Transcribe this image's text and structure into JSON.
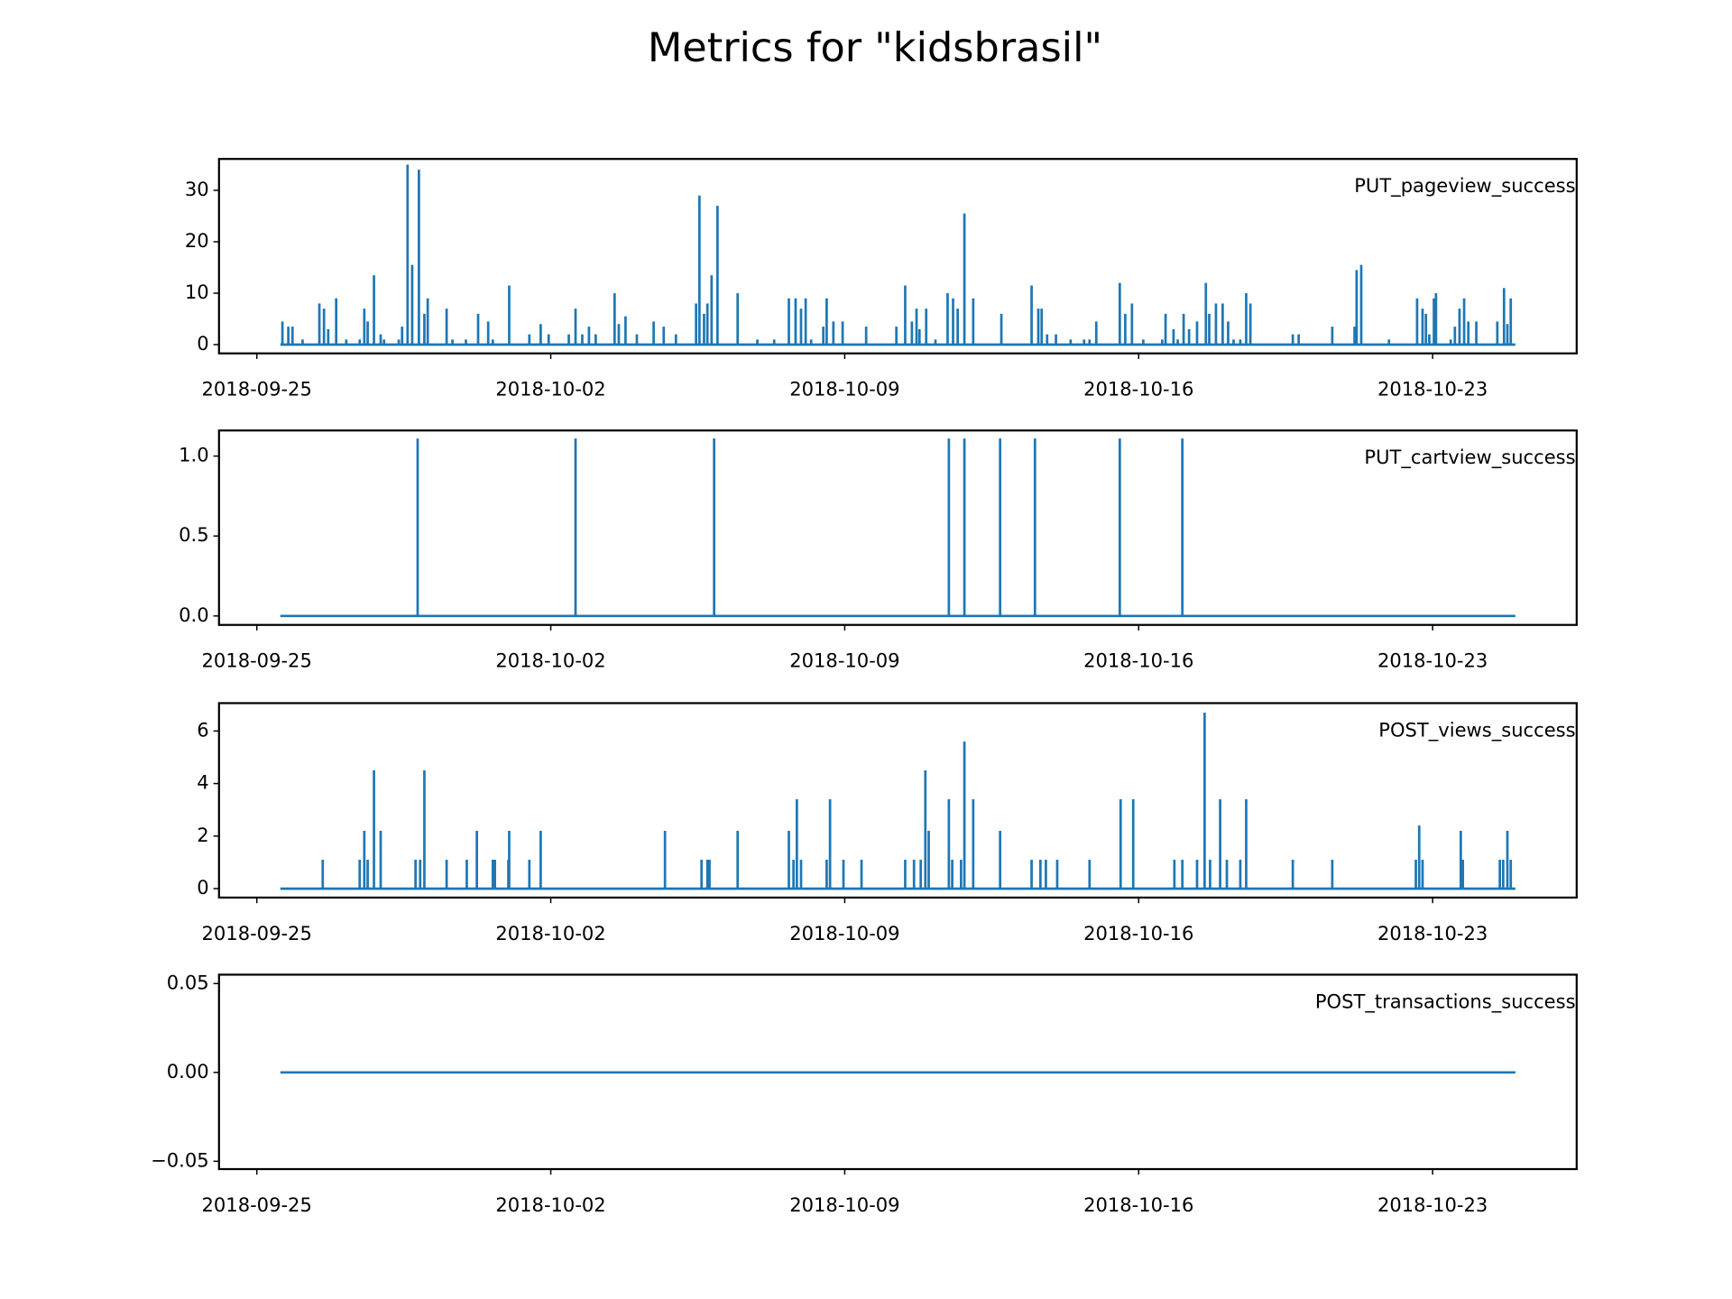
{
  "title": "Metrics for \"kidsbrasil\"",
  "chart_data": [
    {
      "type": "spike",
      "xlim": [
        -0.9,
        31.43
      ],
      "ylim": [
        -1.7,
        36.1
      ],
      "yticks": [
        0,
        10,
        20,
        30
      ],
      "xticks": [
        {
          "value": 0,
          "label": "2018-09-25"
        },
        {
          "value": 7,
          "label": "2018-10-02"
        },
        {
          "value": 14,
          "label": "2018-10-09"
        },
        {
          "value": 21,
          "label": "2018-10-16"
        },
        {
          "value": 28,
          "label": "2018-10-23"
        }
      ],
      "x": [
        0.56,
        0.61,
        0.75,
        0.85,
        1.09,
        1.49,
        1.6,
        1.7,
        1.89,
        2.13,
        2.45,
        2.56,
        2.64,
        2.79,
        2.95,
        3.03,
        3.38,
        3.46,
        3.59,
        3.7,
        3.86,
        3.99,
        4.07,
        4.52,
        4.66,
        4.98,
        5.27,
        5.51,
        5.62,
        6.01,
        6.49,
        6.76,
        6.95,
        7.43,
        7.59,
        7.75,
        7.91,
        8.07,
        8.52,
        8.62,
        8.78,
        9.05,
        9.45,
        9.69,
        9.98,
        10.46,
        10.54,
        10.65,
        10.73,
        10.83,
        10.97,
        11.45,
        11.92,
        12.32,
        12.67,
        12.83,
        12.96,
        13.07,
        13.2,
        13.49,
        13.57,
        13.73,
        13.95,
        14.51,
        15.23,
        15.44,
        15.6,
        15.71,
        15.78,
        15.94,
        16.16,
        16.45,
        16.58,
        16.69,
        16.85,
        17.06,
        17.73,
        18.45,
        18.61,
        18.69,
        18.82,
        19.03,
        19.38,
        19.7,
        19.83,
        19.99,
        20.55,
        20.68,
        20.84,
        21.11,
        21.56,
        21.64,
        21.83,
        21.93,
        22.07,
        22.2,
        22.39,
        22.6,
        22.68,
        22.84,
        23.0,
        23.13,
        23.26,
        23.42,
        23.56,
        23.66,
        24.67,
        24.81,
        25.61,
        26.14,
        26.19,
        26.3,
        26.96,
        27.63,
        27.76,
        27.84,
        27.92,
        28.03,
        28.08,
        28.43,
        28.53,
        28.64,
        28.75,
        28.85,
        29.04,
        29.54,
        29.7,
        29.78,
        29.86,
        29.97
      ],
      "series": [
        {
          "name": "PUT_pageview_success",
          "color": "#1f77b4",
          "values": [
            0,
            4.5,
            3.5,
            3.5,
            1,
            8,
            7,
            3,
            9,
            1,
            1,
            7,
            4.5,
            13.5,
            2,
            1,
            1,
            3.5,
            35,
            15.5,
            34,
            6,
            9,
            7,
            1,
            1,
            6,
            4.5,
            1,
            11.5,
            2,
            4,
            2,
            2,
            7,
            2,
            3.5,
            2,
            10,
            4,
            5.5,
            2,
            4.5,
            3.5,
            2,
            8,
            29,
            6,
            8,
            13.5,
            27,
            10,
            1,
            1,
            9,
            9,
            7,
            9,
            1,
            3.5,
            9,
            4.5,
            4.5,
            3.5,
            3.5,
            11.5,
            4.5,
            7,
            3,
            7,
            1,
            10,
            9,
            7,
            25.5,
            9,
            6,
            11.5,
            7,
            7,
            2,
            2,
            1,
            1,
            1,
            4.5,
            12,
            6,
            8,
            1,
            1,
            6,
            3,
            1,
            6,
            3,
            4.5,
            12,
            6,
            8,
            8,
            4.5,
            1,
            1,
            10,
            8,
            2,
            2,
            3.5,
            3.5,
            14.5,
            15.5,
            1,
            9,
            7,
            6,
            2,
            9,
            10,
            1,
            3.5,
            7,
            9,
            4.5,
            4.5,
            4.5,
            11,
            4,
            9,
            0
          ]
        }
      ]
    },
    {
      "type": "spike",
      "xlim": [
        -0.9,
        31.43
      ],
      "ylim": [
        -0.056,
        1.16
      ],
      "yticks": [
        {
          "value": 0,
          "label": "0.0"
        },
        {
          "value": 0.5,
          "label": "0.5"
        },
        {
          "value": 1,
          "label": "1.0"
        }
      ],
      "xticks": [
        {
          "value": 0,
          "label": "2018-09-25"
        },
        {
          "value": 7,
          "label": "2018-10-02"
        },
        {
          "value": 14,
          "label": "2018-10-09"
        },
        {
          "value": 21,
          "label": "2018-10-16"
        },
        {
          "value": 28,
          "label": "2018-10-23"
        }
      ],
      "x": [
        0.56,
        3.83,
        7.59,
        10.89,
        16.48,
        16.85,
        17.7,
        18.53,
        20.55,
        22.04,
        29.97
      ],
      "series": [
        {
          "name": "PUT_cartview_success",
          "color": "#1f77b4",
          "values": [
            0,
            1.11,
            1.11,
            1.11,
            1.11,
            1.11,
            1.11,
            1.11,
            1.11,
            1.11,
            0
          ]
        }
      ]
    },
    {
      "type": "spike",
      "xlim": [
        -0.9,
        31.43
      ],
      "ylim": [
        -0.34,
        7.06
      ],
      "yticks": [
        0,
        2,
        4,
        6
      ],
      "xticks": [
        {
          "value": 0,
          "label": "2018-09-25"
        },
        {
          "value": 7,
          "label": "2018-10-02"
        },
        {
          "value": 14,
          "label": "2018-10-09"
        },
        {
          "value": 21,
          "label": "2018-10-16"
        },
        {
          "value": 28,
          "label": "2018-10-23"
        }
      ],
      "x": [
        0.56,
        1.57,
        2.45,
        2.56,
        2.64,
        2.79,
        2.95,
        3.78,
        3.89,
        3.99,
        4.52,
        5.0,
        5.24,
        5.62,
        5.67,
        5.99,
        6.01,
        6.49,
        6.76,
        9.72,
        10.59,
        10.73,
        10.78,
        11.45,
        12.67,
        12.78,
        12.86,
        12.96,
        13.57,
        13.65,
        13.97,
        14.4,
        15.44,
        15.65,
        15.81,
        15.92,
        16.0,
        16.48,
        16.56,
        16.77,
        16.85,
        17.06,
        17.7,
        18.45,
        18.66,
        18.79,
        19.06,
        19.83,
        20.57,
        20.87,
        21.85,
        22.04,
        22.39,
        22.57,
        22.7,
        22.94,
        23.1,
        23.42,
        23.56,
        24.67,
        25.61,
        27.6,
        27.68,
        27.76,
        28.67,
        28.72,
        29.6,
        29.68,
        29.78,
        29.86,
        29.97
      ],
      "series": [
        {
          "name": "POST_views_success",
          "color": "#1f77b4",
          "values": [
            0,
            1.1,
            1.1,
            2.2,
            1.1,
            4.5,
            2.2,
            1.1,
            1.1,
            4.5,
            1.1,
            1.1,
            2.2,
            1.1,
            1.1,
            1.1,
            2.2,
            1.1,
            2.2,
            2.2,
            1.1,
            1.1,
            1.1,
            2.2,
            2.2,
            1.1,
            3.4,
            1.1,
            1.1,
            3.4,
            1.1,
            1.1,
            1.1,
            1.1,
            1.1,
            4.5,
            2.2,
            3.4,
            1.1,
            1.1,
            5.6,
            3.4,
            2.2,
            1.1,
            1.1,
            1.1,
            1.1,
            1.1,
            3.4,
            3.4,
            1.1,
            1.1,
            1.1,
            6.7,
            1.1,
            3.4,
            1.1,
            1.1,
            3.4,
            1.1,
            1.1,
            1.1,
            2.4,
            1.1,
            2.2,
            1.1,
            1.1,
            1.1,
            2.2,
            1.1,
            0
          ]
        }
      ]
    },
    {
      "type": "spike",
      "xlim": [
        -0.9,
        31.43
      ],
      "ylim": [
        -0.0544,
        0.055
      ],
      "yticks": [
        {
          "value": -0.05,
          "label": "−0.05"
        },
        {
          "value": 0,
          "label": "0.00"
        },
        {
          "value": 0.05,
          "label": "0.05"
        }
      ],
      "xticks": [
        {
          "value": 0,
          "label": "2018-09-25"
        },
        {
          "value": 7,
          "label": "2018-10-02"
        },
        {
          "value": 14,
          "label": "2018-10-09"
        },
        {
          "value": 21,
          "label": "2018-10-16"
        },
        {
          "value": 28,
          "label": "2018-10-23"
        }
      ],
      "x": [
        0.56,
        29.97
      ],
      "series": [
        {
          "name": "POST_transactions_success",
          "color": "#1f77b4",
          "values": [
            0,
            0
          ]
        }
      ]
    }
  ]
}
